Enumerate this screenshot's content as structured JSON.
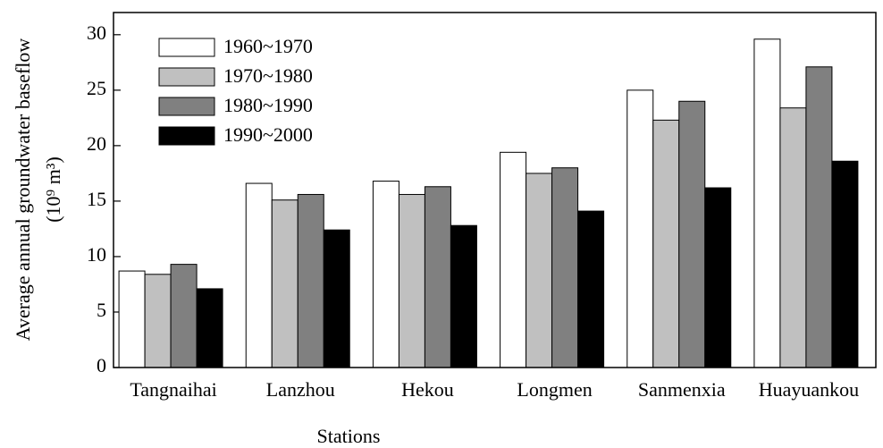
{
  "chart_data": {
    "type": "bar",
    "y_label": [
      "Average annual groundwater baseflow",
      "(10⁹ m³)"
    ],
    "x_label": "Stations",
    "categories": [
      "Tangnaihai",
      "Lanzhou",
      "Hekou",
      "Longmen",
      "Sanmenxia",
      "Huayuankou"
    ],
    "series": [
      {
        "name": "1960~1970",
        "color": "#ffffff",
        "values": [
          8.7,
          16.6,
          16.8,
          19.4,
          25.0,
          29.6
        ]
      },
      {
        "name": "1970~1980",
        "color": "#c0c0c0",
        "values": [
          8.4,
          15.1,
          15.6,
          17.5,
          22.3,
          23.4
        ]
      },
      {
        "name": "1980~1990",
        "color": "#808080",
        "values": [
          9.3,
          15.6,
          16.3,
          18.0,
          24.0,
          27.1
        ]
      },
      {
        "name": "1990~2000",
        "color": "#000000",
        "values": [
          7.1,
          12.4,
          12.8,
          14.1,
          16.2,
          18.6
        ]
      }
    ],
    "ylim": [
      0,
      32
    ],
    "yticks": [
      0,
      5,
      10,
      15,
      20,
      25,
      30
    ],
    "legend": "upper left"
  }
}
